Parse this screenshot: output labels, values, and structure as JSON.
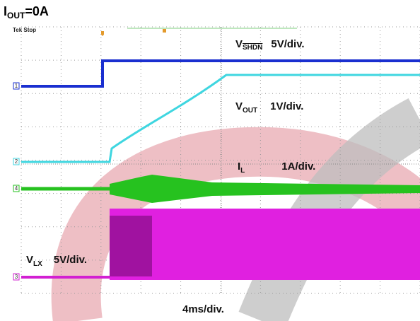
{
  "title": {
    "symbol": "I",
    "subscript": "OUT",
    "rest": "=0A"
  },
  "scope_status": "Tek Stop",
  "channels": [
    {
      "marker": "1",
      "symbol": "V",
      "subscript": "SHDN",
      "scale": "5V/div."
    },
    {
      "marker": "2",
      "symbol": "V",
      "subscript": "OUT",
      "scale": "1V/div."
    },
    {
      "marker": "4",
      "symbol": "I",
      "subscript": "L",
      "scale": "1A/div."
    },
    {
      "marker": "3",
      "symbol": "V",
      "subscript": "LX",
      "scale": "5V/div."
    }
  ],
  "timebase": "4ms/div."
}
